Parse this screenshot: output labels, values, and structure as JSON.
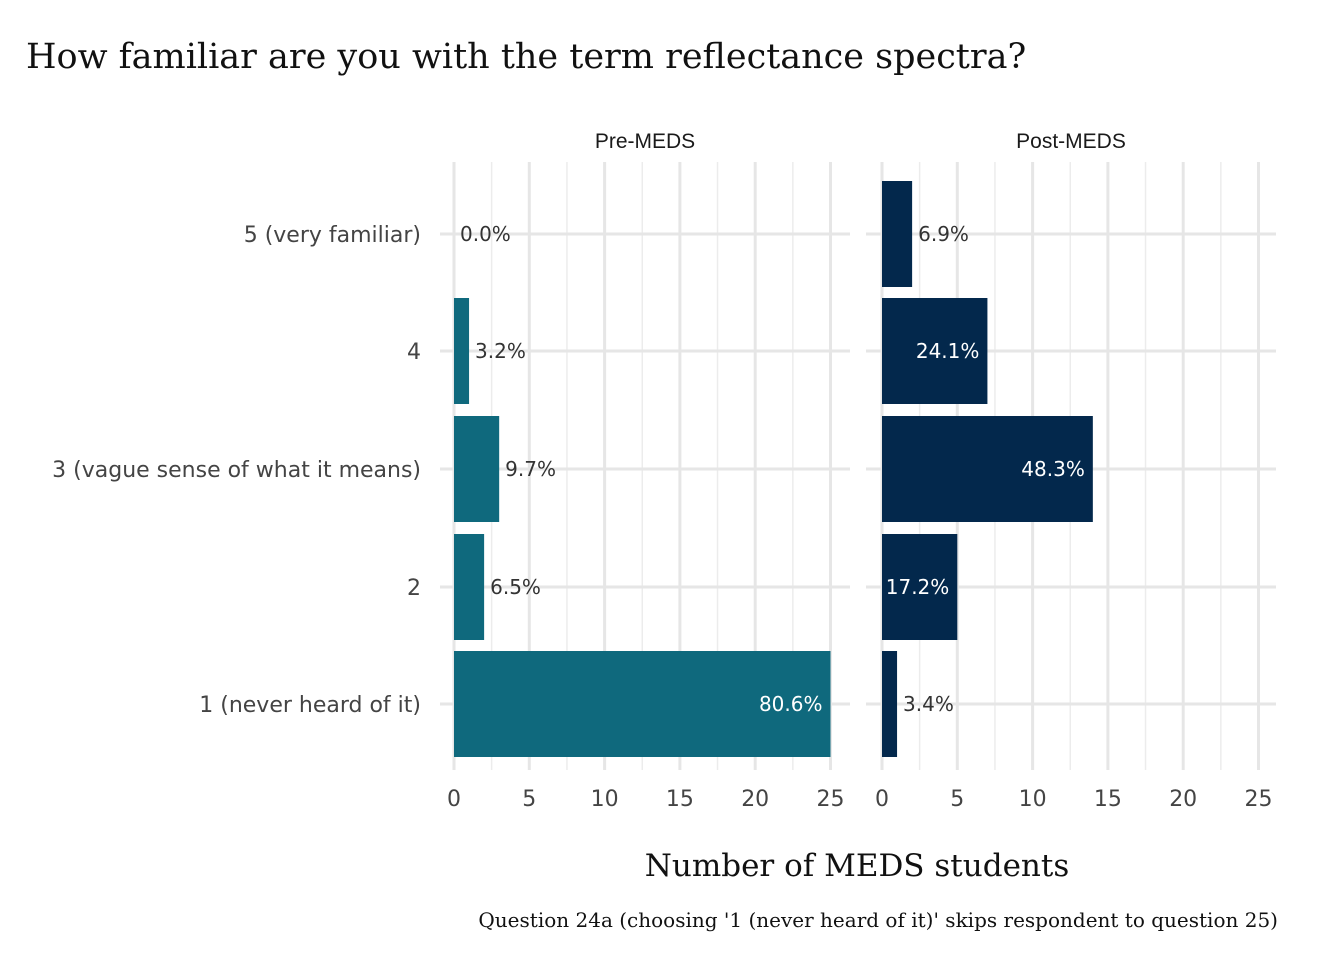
{
  "chart_data": {
    "type": "bar",
    "orientation": "horizontal",
    "title": "How familiar are you with the term reflectance spectra?",
    "xlabel": "Number of MEDS students",
    "ylabel": "",
    "caption": "Question 24a (choosing '1 (never heard of it)' skips respondent to question 25)",
    "categories": [
      "5 (very familiar)",
      "4",
      "3 (vague sense of what it means)",
      "2",
      "1 (never heard of it)"
    ],
    "xlim": [
      0,
      25
    ],
    "xticks": [
      0,
      5,
      10,
      15,
      20,
      25
    ],
    "grid": true,
    "facets": [
      {
        "name": "Pre-MEDS",
        "color": "#0f697d",
        "values": [
          0,
          1,
          3,
          2,
          25
        ],
        "labels": [
          "0.0%",
          "3.2%",
          "9.7%",
          "6.5%",
          "80.6%"
        ]
      },
      {
        "name": "Post-MEDS",
        "color": "#03284c",
        "values": [
          2,
          7,
          14,
          5,
          1
        ],
        "labels": [
          "6.9%",
          "24.1%",
          "48.3%",
          "17.2%",
          "3.4%"
        ]
      }
    ]
  }
}
